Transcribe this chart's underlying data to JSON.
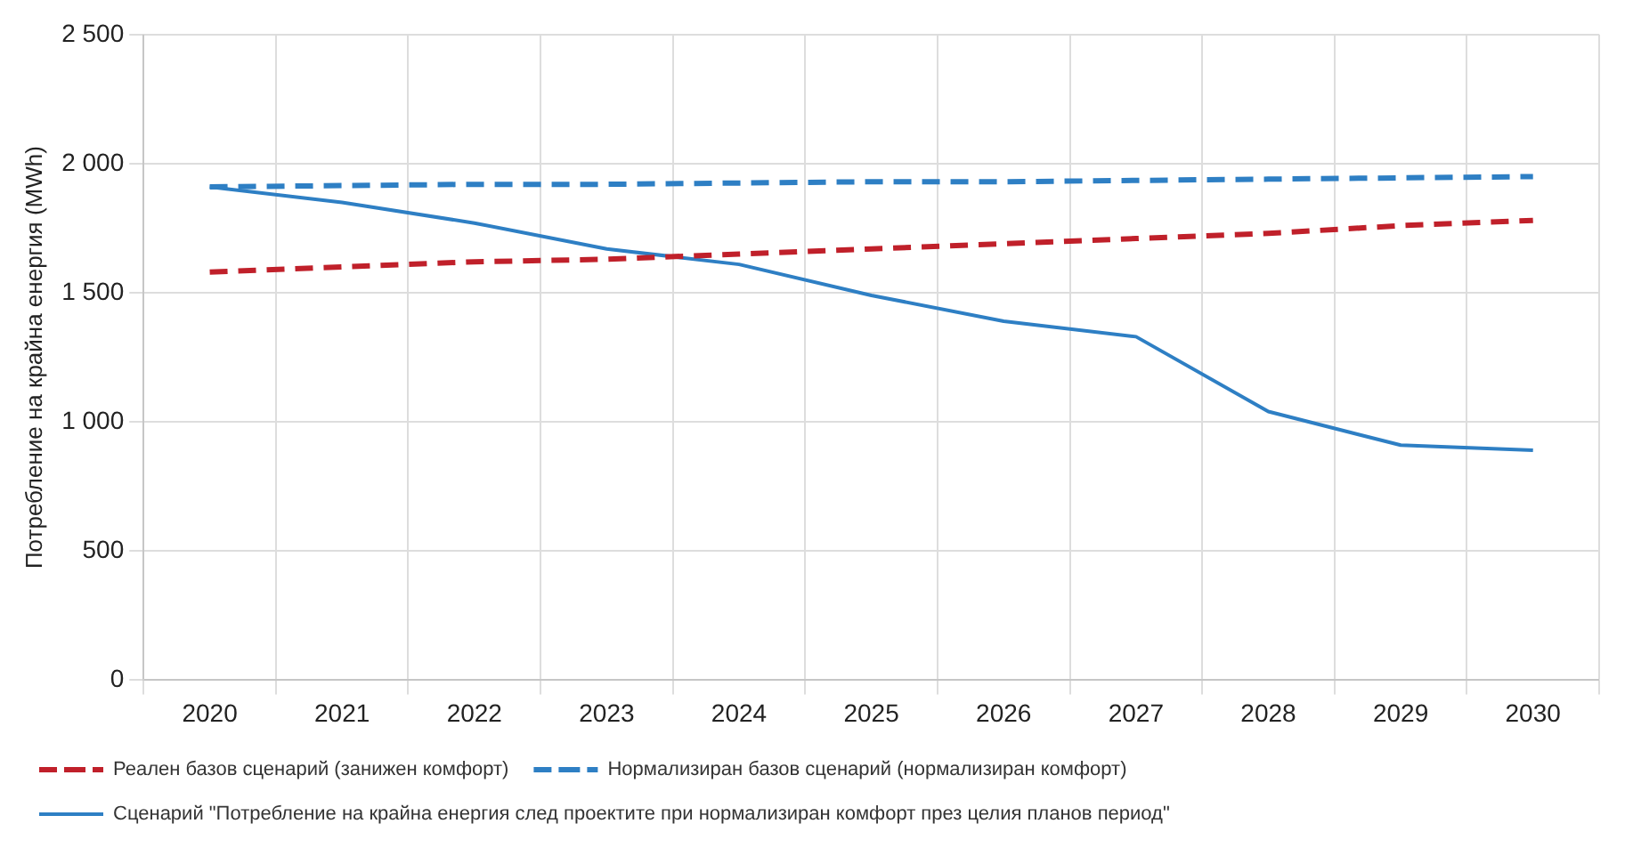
{
  "chart_data": {
    "type": "line",
    "ylabel": "Потребление на крайна енергия (MWh)",
    "categories": [
      "2020",
      "2021",
      "2022",
      "2023",
      "2024",
      "2025",
      "2026",
      "2027",
      "2028",
      "2029",
      "2030"
    ],
    "series": [
      {
        "name": "Реален базов сценарий (занижен комфорт)",
        "color": "#c0202a",
        "line_style": "dashed",
        "values": [
          1580,
          1600,
          1620,
          1630,
          1650,
          1670,
          1690,
          1710,
          1730,
          1760,
          1780
        ]
      },
      {
        "name": "Нормализиран базов сценарий (нормализиран комфорт)",
        "color": "#2e7fc4",
        "line_style": "dashed",
        "values": [
          1910,
          1915,
          1920,
          1920,
          1925,
          1930,
          1930,
          1935,
          1940,
          1945,
          1950
        ]
      },
      {
        "name": "Сценарий \"Потребление на крайна енергия след проектите при нормализиран комфорт през целия планов период\"",
        "color": "#2e7fc4",
        "line_style": "solid",
        "values": [
          1910,
          1850,
          1770,
          1670,
          1610,
          1490,
          1390,
          1330,
          1040,
          910,
          890
        ]
      }
    ],
    "ylim": [
      0,
      2500
    ],
    "yticks": [
      0,
      500,
      {
        "value": 1000,
        "label": "1 000"
      },
      {
        "value": 1500,
        "label": "1 500"
      },
      {
        "value": 2000,
        "label": "2 000"
      },
      {
        "value": 2500,
        "label": "2 500"
      }
    ],
    "grid": true,
    "legend": "bottom",
    "marker": "none"
  }
}
